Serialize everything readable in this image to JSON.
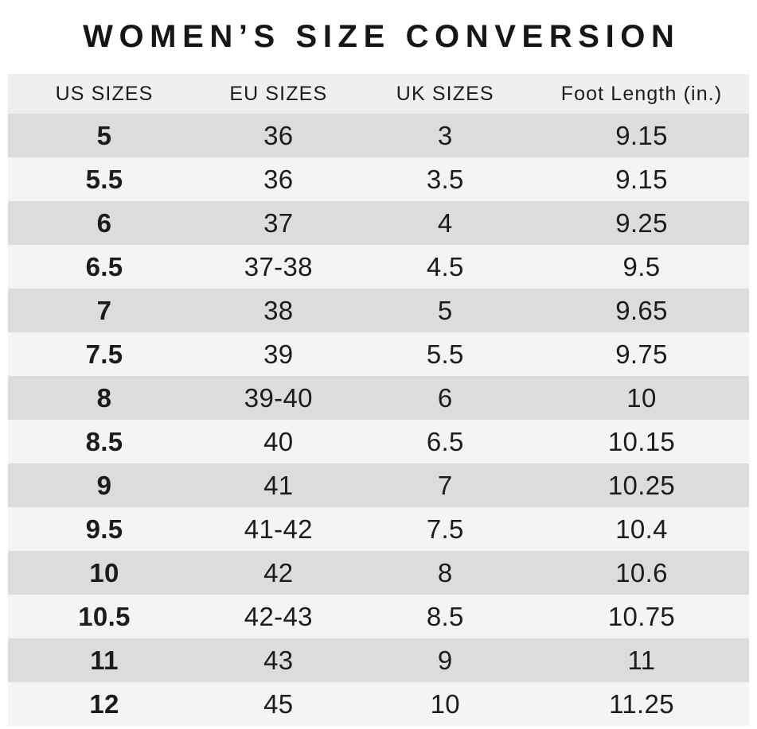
{
  "chart_data": {
    "type": "table",
    "title": "WOMEN’S SIZE CONVERSION",
    "columns": [
      "US SIZES",
      "EU SIZES",
      "UK SIZES",
      "Foot Length (in.)"
    ],
    "rows": [
      [
        "5",
        "36",
        "3",
        "9.15"
      ],
      [
        "5.5",
        "36",
        "3.5",
        "9.15"
      ],
      [
        "6",
        "37",
        "4",
        "9.25"
      ],
      [
        "6.5",
        "37-38",
        "4.5",
        "9.5"
      ],
      [
        "7",
        "38",
        "5",
        "9.65"
      ],
      [
        "7.5",
        "39",
        "5.5",
        "9.75"
      ],
      [
        "8",
        "39-40",
        "6",
        "10"
      ],
      [
        "8.5",
        "40",
        "6.5",
        "10.15"
      ],
      [
        "9",
        "41",
        "7",
        "10.25"
      ],
      [
        "9.5",
        "41-42",
        "7.5",
        "10.4"
      ],
      [
        "10",
        "42",
        "8",
        "10.6"
      ],
      [
        "10.5",
        "42-43",
        "8.5",
        "10.75"
      ],
      [
        "11",
        "43",
        "9",
        "11"
      ],
      [
        "12",
        "45",
        "10",
        "11.25"
      ]
    ]
  },
  "colors": {
    "page_bg": "#ffffff",
    "header_bg": "#efefef",
    "row_dark": "#dcdcdc",
    "row_light": "#f4f4f4",
    "text": "#1c1c1c"
  }
}
